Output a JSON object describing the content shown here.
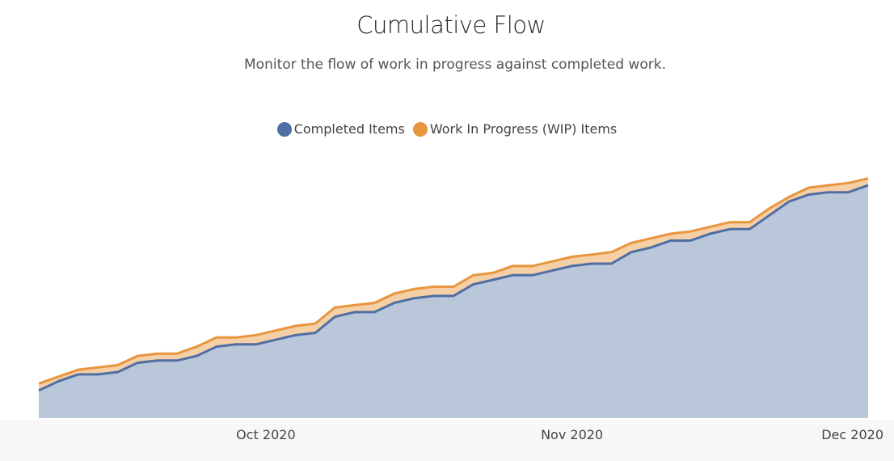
{
  "header": {
    "title": "Cumulative Flow",
    "subtitle": "Monitor the flow of work in progress against completed work."
  },
  "legend": [
    {
      "label": "Completed Items",
      "color": "#4e6fa3"
    },
    {
      "label": "Work In Progress (WIP) Items",
      "color": "#e8953f"
    }
  ],
  "chart_data": {
    "type": "area",
    "title": "Cumulative Flow",
    "subtitle": "Monitor the flow of work in progress against completed work.",
    "x_ticks": [
      "Oct 2020",
      "Nov 2020",
      "Dec 2020"
    ],
    "x": [
      "2020-09-08",
      "2020-09-10",
      "2020-09-12",
      "2020-09-14",
      "2020-09-16",
      "2020-09-18",
      "2020-09-20",
      "2020-09-22",
      "2020-09-24",
      "2020-09-26",
      "2020-09-28",
      "2020-09-30",
      "2020-10-02",
      "2020-10-04",
      "2020-10-06",
      "2020-10-08",
      "2020-10-10",
      "2020-10-12",
      "2020-10-14",
      "2020-10-16",
      "2020-10-18",
      "2020-10-20",
      "2020-10-22",
      "2020-10-24",
      "2020-10-26",
      "2020-10-28",
      "2020-10-30",
      "2020-11-01",
      "2020-11-03",
      "2020-11-05",
      "2020-11-07",
      "2020-11-09",
      "2020-11-11",
      "2020-11-13",
      "2020-11-15",
      "2020-11-17",
      "2020-11-19",
      "2020-11-21",
      "2020-11-23",
      "2020-11-25",
      "2020-11-27",
      "2020-11-29",
      "2020-12-01"
    ],
    "series": [
      {
        "name": "Completed Items",
        "color": "#4e6fa3",
        "values": [
          12,
          16,
          19,
          19,
          20,
          24,
          25,
          25,
          27,
          31,
          32,
          32,
          34,
          36,
          37,
          44,
          46,
          46,
          50,
          52,
          53,
          53,
          58,
          60,
          62,
          62,
          64,
          66,
          67,
          67,
          72,
          74,
          77,
          77,
          80,
          82,
          82,
          88,
          94,
          97,
          98,
          98,
          101
        ]
      },
      {
        "name": "Work In Progress (WIP) Items",
        "color": "#e8953f",
        "values": [
          3,
          2,
          2,
          3,
          3,
          3,
          3,
          3,
          4,
          4,
          3,
          4,
          4,
          4,
          4,
          4,
          3,
          4,
          4,
          4,
          4,
          4,
          4,
          3,
          4,
          4,
          4,
          4,
          4,
          5,
          4,
          4,
          3,
          4,
          3,
          3,
          3,
          3,
          2,
          3,
          3,
          4,
          3
        ]
      }
    ],
    "ylim": [
      0,
      110
    ],
    "grid": false,
    "legend_position": "top-center"
  }
}
